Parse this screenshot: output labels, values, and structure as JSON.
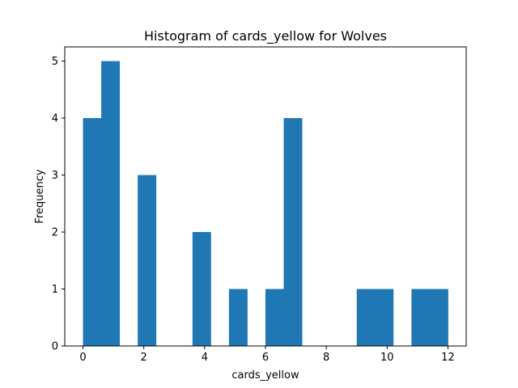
{
  "chart_data": {
    "type": "bar",
    "title": "Histogram of cards_yellow for Wolves",
    "xlabel": "cards_yellow",
    "ylabel": "Frequency",
    "xlim": [
      -0.6,
      12.6
    ],
    "ylim": [
      0,
      5.25
    ],
    "x_ticks": [
      0,
      2,
      4,
      6,
      8,
      10,
      12
    ],
    "y_ticks": [
      0,
      1,
      2,
      3,
      4,
      5
    ],
    "bin_edges": [
      0,
      0.6,
      1.2,
      1.8,
      2.4,
      3.0,
      3.6,
      4.2,
      4.8,
      5.4,
      6.0,
      6.6,
      7.2,
      7.8,
      8.4,
      9.0,
      9.6,
      10.2,
      10.8,
      11.4,
      12.0
    ],
    "counts": [
      4,
      5,
      0,
      3,
      0,
      0,
      2,
      0,
      1,
      0,
      1,
      4,
      0,
      0,
      0,
      1,
      1,
      0,
      1,
      1
    ],
    "bar_color": "#1f77b4",
    "grid": false
  }
}
